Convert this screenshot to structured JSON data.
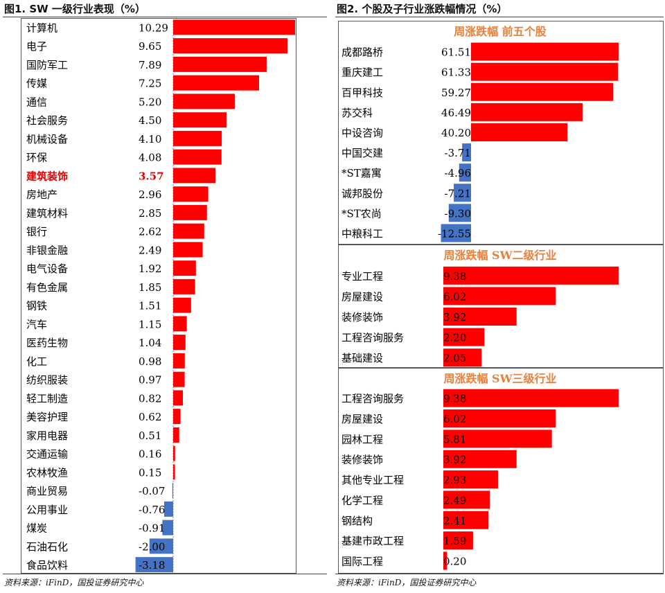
{
  "figures": {
    "left_title": "图1. SW 一级行业表现（%）",
    "right_title": "图2. 个股及子行业涨跌幅情况（%）"
  },
  "source_left": "资料来源：iFinD，国投证券研究中心",
  "source_right": "资料来源：iFinD，国投证券研究中心",
  "colors": {
    "positive": "#FF0000",
    "negative": "#4472C4",
    "highlight": "#E60000",
    "section_title": "#E8803A"
  },
  "chart_data": [
    {
      "type": "bar",
      "orientation": "horizontal",
      "title": "图1. SW 一级行业表现（%）",
      "highlight_category": "建筑装饰",
      "categories": [
        "计算机",
        "电子",
        "国防军工",
        "传媒",
        "通信",
        "社会服务",
        "机械设备",
        "环保",
        "建筑装饰",
        "房地产",
        "建筑材料",
        "银行",
        "非银金融",
        "电气设备",
        "有色金属",
        "钢铁",
        "汽车",
        "医药生物",
        "化工",
        "纺织服装",
        "轻工制造",
        "美容护理",
        "家用电器",
        "交通运输",
        "农林牧渔",
        "商业贸易",
        "公用事业",
        "煤炭",
        "石油石化",
        "食品饮料"
      ],
      "values": [
        10.29,
        9.65,
        7.89,
        7.25,
        5.2,
        4.5,
        4.1,
        4.08,
        3.57,
        2.96,
        2.85,
        2.62,
        2.49,
        1.92,
        1.85,
        1.51,
        1.15,
        1.04,
        0.98,
        0.97,
        0.82,
        0.62,
        0.51,
        0.16,
        0.15,
        -0.07,
        -0.76,
        -0.91,
        -2.0,
        -3.18
      ],
      "labels": [
        "10.29",
        "9.65",
        "7.89",
        "7.25",
        "5.20",
        "4.50",
        "4.10",
        "4.08",
        "3.57",
        "2.96",
        "2.85",
        "2.62",
        "2.49",
        "1.92",
        "1.85",
        "1.51",
        "1.15",
        "1.04",
        "0.98",
        "0.97",
        "0.82",
        "0.62",
        "0.51",
        "0.16",
        "0.15",
        "-0.07",
        "-0.76",
        "-0.91",
        "-2.00",
        "-3.18"
      ]
    },
    {
      "type": "bar",
      "orientation": "horizontal",
      "title": "周涨跌幅 前五个股",
      "categories": [
        "成都路桥",
        "重庆建工",
        "百甲科技",
        "苏交科",
        "中设咨询",
        "中国交建",
        "*ST嘉寓",
        "诚邦股份",
        "*ST农尚",
        "中粮科工"
      ],
      "values": [
        61.51,
        61.33,
        59.27,
        46.49,
        40.2,
        -3.71,
        -4.96,
        -7.21,
        -9.3,
        -12.55
      ],
      "labels": [
        "61.51",
        "61.33",
        "59.27",
        "46.49",
        "40.20",
        "-3.71",
        "-4.96",
        "-7.21",
        "-9.30",
        "-12.55"
      ]
    },
    {
      "type": "bar",
      "orientation": "horizontal",
      "title": "周涨跌幅 SW二级行业",
      "categories": [
        "专业工程",
        "房屋建设",
        "装修装饰",
        "工程咨询服务",
        "基础建设"
      ],
      "values": [
        9.38,
        6.02,
        3.92,
        2.2,
        2.05
      ],
      "labels": [
        "9.38",
        "6.02",
        "3.92",
        "2.20",
        "2.05"
      ]
    },
    {
      "type": "bar",
      "orientation": "horizontal",
      "title": "周涨跌幅 SW三级行业",
      "categories": [
        "工程咨询服务",
        "房屋建设",
        "园林工程",
        "装修装饰",
        "其他专业工程",
        "化学工程",
        "钢结构",
        "基建市政工程",
        "国际工程"
      ],
      "values": [
        9.38,
        6.02,
        5.81,
        3.92,
        2.93,
        2.49,
        2.41,
        1.59,
        0.2
      ],
      "labels": [
        "9.38",
        "6.02",
        "5.81",
        "3.92",
        "2.93",
        "2.49",
        "2.41",
        "1.59",
        "0.20"
      ]
    }
  ]
}
